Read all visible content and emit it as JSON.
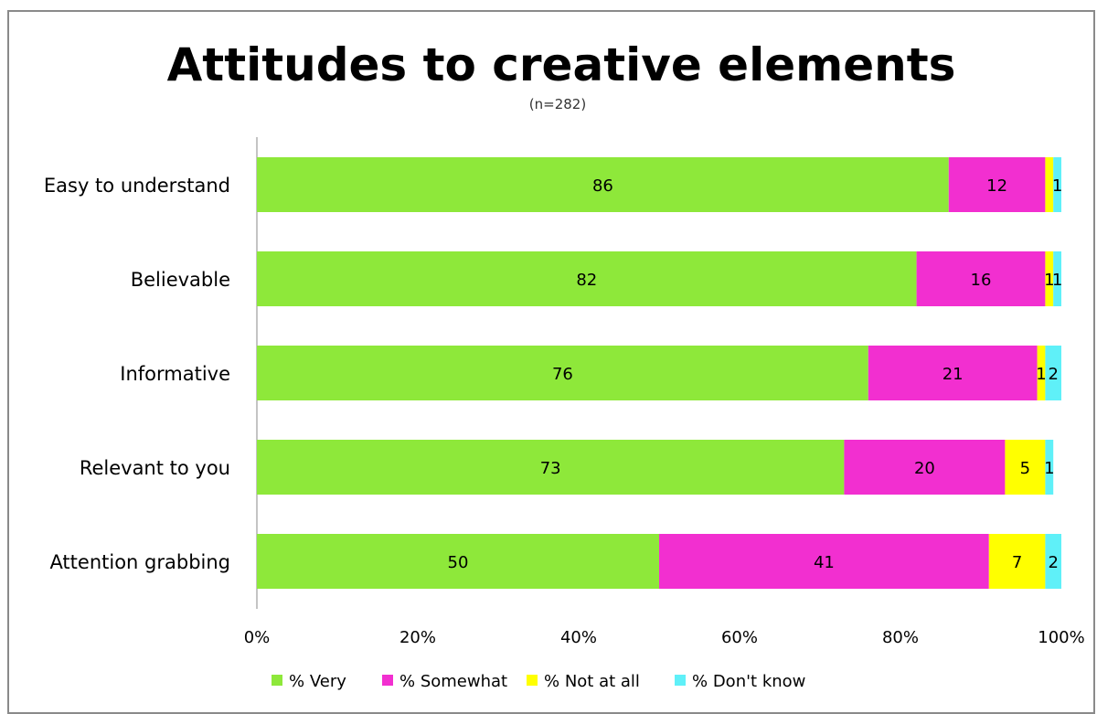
{
  "chart_data": {
    "type": "bar",
    "orientation": "horizontal",
    "stacked": true,
    "title": "Attitudes to creative elements",
    "subtitle": "(n=282)",
    "categories": [
      "Easy to understand",
      "Believable",
      "Informative",
      "Relevant to you",
      "Attention grabbing"
    ],
    "series": [
      {
        "name": "% Very",
        "color": "#8ee83a",
        "values": [
          86,
          82,
          76,
          73,
          50
        ]
      },
      {
        "name": "% Somewhat",
        "color": "#f22fd0",
        "values": [
          12,
          16,
          21,
          20,
          41
        ]
      },
      {
        "name": "% Not at all",
        "color": "#ffff00",
        "values": [
          1,
          1,
          1,
          5,
          7
        ]
      },
      {
        "name": "% Don't know",
        "color": "#5ff0f8",
        "values": [
          1,
          1,
          2,
          1,
          2
        ]
      }
    ],
    "value_labels": [
      [
        "86",
        "12",
        "",
        "1"
      ],
      [
        "82",
        "16",
        "1",
        "1"
      ],
      [
        "76",
        "21",
        "1",
        "2"
      ],
      [
        "73",
        "20",
        "5",
        "1"
      ],
      [
        "50",
        "41",
        "7",
        "2"
      ]
    ],
    "xlim": [
      0,
      100
    ],
    "x_ticks": [
      "0%",
      "20%",
      "40%",
      "60%",
      "80%",
      "100%"
    ],
    "grid": false,
    "legend_position": "bottom"
  }
}
